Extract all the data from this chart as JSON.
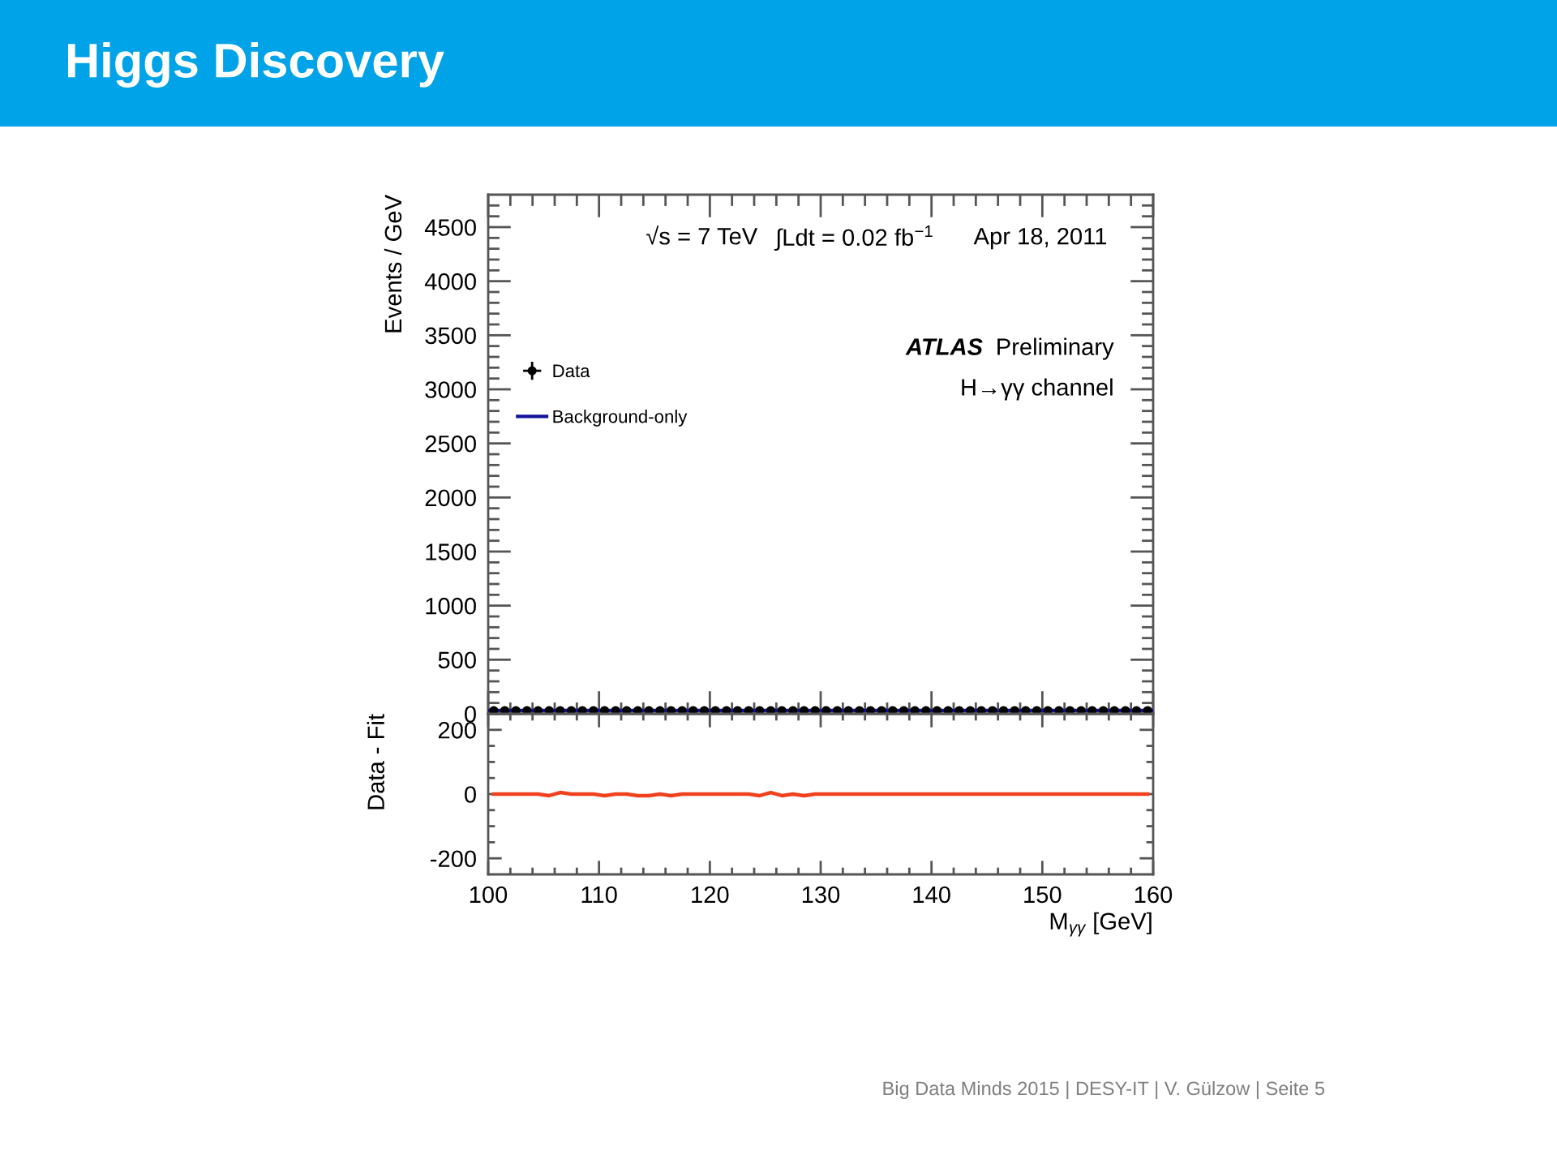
{
  "chart_data": [
    {
      "type": "scatter",
      "title": "Higgs Discovery",
      "ylabel": "Events / GeV",
      "annotations": [
        "√s = 7 TeV",
        "∫Ldt = 0.02 fb$^{−1}$",
        "Apr 18, 2011",
        "ATLAS",
        "Preliminary",
        "H→γγ channel"
      ],
      "series": [
        {
          "name": "Data",
          "type": "scatter",
          "marker": "circle",
          "color": "#000000",
          "x": [
            100.5,
            101.5,
            102.5,
            103.5,
            104.5,
            105.5,
            106.5,
            107.5,
            108.5,
            109.5,
            110.5,
            111.5,
            112.5,
            113.5,
            114.5,
            115.5,
            116.5,
            117.5,
            118.5,
            119.5,
            120.5,
            121.5,
            122.5,
            123.5,
            124.5,
            125.5,
            126.5,
            127.5,
            128.5,
            129.5,
            130.5,
            131.5,
            132.5,
            133.5,
            134.5,
            135.5,
            136.5,
            137.5,
            138.5,
            139.5,
            140.5,
            141.5,
            142.5,
            143.5,
            144.5,
            145.5,
            146.5,
            147.5,
            148.5,
            149.5,
            150.5,
            151.5,
            152.5,
            153.5,
            154.5,
            155.5,
            156.5,
            157.5,
            158.5,
            159.5
          ],
          "values": [
            30,
            30,
            30,
            30,
            30,
            30,
            30,
            30,
            30,
            30,
            30,
            30,
            30,
            30,
            30,
            30,
            30,
            30,
            30,
            30,
            30,
            30,
            30,
            30,
            30,
            30,
            30,
            30,
            30,
            30,
            30,
            30,
            30,
            30,
            30,
            30,
            30,
            30,
            30,
            30,
            30,
            30,
            30,
            30,
            30,
            30,
            30,
            30,
            30,
            30,
            30,
            30,
            30,
            30,
            30,
            30,
            30,
            30,
            30,
            30
          ],
          "errors": [
            20,
            20,
            20,
            20,
            20,
            20,
            20,
            20,
            20,
            20,
            20,
            20,
            20,
            20,
            20,
            20,
            20,
            20,
            20,
            20,
            20,
            20,
            20,
            20,
            20,
            20,
            20,
            20,
            20,
            20,
            20,
            20,
            20,
            20,
            20,
            20,
            20,
            20,
            20,
            20,
            20,
            20,
            20,
            20,
            20,
            20,
            20,
            20,
            20,
            20,
            20,
            20,
            20,
            20,
            20,
            20,
            20,
            20,
            20,
            20
          ],
          "xerrors": [
            0.3,
            0.3,
            0.3,
            0.3,
            0.3,
            0.3,
            0.3,
            0.3,
            0.3,
            0.3,
            0.3,
            0.3,
            0.3,
            0.3,
            0.3,
            0.3,
            0.3,
            0.3,
            0.3,
            0.3,
            0.3,
            0.3,
            0.3,
            0.3,
            0.3,
            0.3,
            0.3,
            0.3,
            0.3,
            0.3,
            0.3,
            0.3,
            0.3,
            0.3,
            0.3,
            0.3,
            0.3,
            0.3,
            0.3,
            0.3,
            0.3,
            0.3,
            0.3,
            0.3,
            0.3,
            0.3,
            0.3,
            0.3,
            0.3,
            0.3,
            0.3,
            0.3,
            0.3,
            0.3,
            0.3,
            0.3,
            0.3,
            0.3,
            0.3,
            0.3
          ]
        },
        {
          "name": "Background-only",
          "type": "line",
          "color": "#14149b",
          "x": [
            100,
            160
          ],
          "values": [
            30,
            30
          ]
        }
      ],
      "xlim": [
        100,
        160
      ],
      "xticks": [
        100,
        {
          "value": 102,
          "label": null
        },
        {
          "value": 104,
          "label": null
        },
        {
          "value": 106,
          "label": null
        },
        {
          "value": 108,
          "label": null
        },
        110,
        {
          "value": 112,
          "label": null
        },
        {
          "value": 114,
          "label": null
        },
        {
          "value": 116,
          "label": null
        },
        {
          "value": 118,
          "label": null
        },
        120,
        {
          "value": 122,
          "label": null
        },
        {
          "value": 124,
          "label": null
        },
        {
          "value": 126,
          "label": null
        },
        {
          "value": 128,
          "label": null
        },
        130,
        {
          "value": 132,
          "label": null
        },
        {
          "value": 134,
          "label": null
        },
        {
          "value": 136,
          "label": null
        },
        {
          "value": 138,
          "label": null
        },
        140,
        {
          "value": 142,
          "label": null
        },
        {
          "value": 144,
          "label": null
        },
        {
          "value": 146,
          "label": null
        },
        {
          "value": 148,
          "label": null
        },
        150,
        {
          "value": 152,
          "label": null
        },
        {
          "value": 154,
          "label": null
        },
        {
          "value": 156,
          "label": null
        },
        {
          "value": 158,
          "label": null
        },
        160
      ],
      "ylim": [
        0,
        4800
      ],
      "yticks": [
        0,
        {
          "value": 100,
          "label": null
        },
        {
          "value": 200,
          "label": null
        },
        {
          "value": 300,
          "label": null
        },
        {
          "value": 400,
          "label": null
        },
        500,
        {
          "value": 600,
          "label": null
        },
        {
          "value": 700,
          "label": null
        },
        {
          "value": 800,
          "label": null
        },
        {
          "value": 900,
          "label": null
        },
        1000,
        {
          "value": 1100,
          "label": null
        },
        {
          "value": 1200,
          "label": null
        },
        {
          "value": 1300,
          "label": null
        },
        {
          "value": 1400,
          "label": null
        },
        1500,
        {
          "value": 1600,
          "label": null
        },
        {
          "value": 1700,
          "label": null
        },
        {
          "value": 1800,
          "label": null
        },
        {
          "value": 1900,
          "label": null
        },
        2000,
        {
          "value": 2100,
          "label": null
        },
        {
          "value": 2200,
          "label": null
        },
        {
          "value": 2300,
          "label": null
        },
        {
          "value": 2400,
          "label": null
        },
        2500,
        {
          "value": 2600,
          "label": null
        },
        {
          "value": 2700,
          "label": null
        },
        {
          "value": 2800,
          "label": null
        },
        {
          "value": 2900,
          "label": null
        },
        3000,
        {
          "value": 3100,
          "label": null
        },
        {
          "value": 3200,
          "label": null
        },
        {
          "value": 3300,
          "label": null
        },
        {
          "value": 3400,
          "label": null
        },
        3500,
        {
          "value": 3600,
          "label": null
        },
        {
          "value": 3700,
          "label": null
        },
        {
          "value": 3800,
          "label": null
        },
        {
          "value": 3900,
          "label": null
        },
        4000,
        {
          "value": 4100,
          "label": null
        },
        {
          "value": 4200,
          "label": null
        },
        {
          "value": 4300,
          "label": null
        },
        {
          "value": 4400,
          "label": null
        },
        4500,
        {
          "value": 4600,
          "label": null
        },
        {
          "value": 4700,
          "label": null
        }
      ],
      "tick_labels": "y",
      "legend": "top left"
    },
    {
      "type": "line",
      "xlabel": "M$_{γγ}$ [GeV]",
      "ylabel": "Data - Fit",
      "annotations": [
        "Big Data Minds 2015 | DESY-IT | V. Gülzow | Seite 5"
      ],
      "x": [
        100.5,
        101.5,
        102.5,
        103.5,
        104.5,
        105.5,
        106.5,
        107.5,
        108.5,
        109.5,
        110.5,
        111.5,
        112.5,
        113.5,
        114.5,
        115.5,
        116.5,
        117.5,
        118.5,
        119.5,
        120.5,
        121.5,
        122.5,
        123.5,
        124.5,
        125.5,
        126.5,
        127.5,
        128.5,
        129.5,
        130.5,
        131.5,
        132.5,
        133.5,
        134.5,
        135.5,
        136.5,
        137.5,
        138.5,
        139.5,
        140.5,
        141.5,
        142.5,
        143.5,
        144.5,
        145.5,
        146.5,
        147.5,
        148.5,
        149.5,
        150.5,
        151.5,
        152.5,
        153.5,
        154.5,
        155.5,
        156.5,
        157.5,
        158.5,
        159.5
      ],
      "series": [
        {
          "color": "#f0401e",
          "values": [
            0,
            0,
            0,
            0,
            0,
            -5,
            5,
            0,
            0,
            0,
            -5,
            0,
            0,
            -5,
            -5,
            0,
            -5,
            0,
            0,
            0,
            0,
            0,
            0,
            0,
            -5,
            5,
            -5,
            0,
            -5,
            0,
            0,
            0,
            0,
            0,
            0,
            0,
            0,
            0,
            0,
            0,
            0,
            0,
            0,
            0,
            0,
            0,
            0,
            0,
            0,
            0,
            0,
            0,
            0,
            0,
            0,
            0,
            0,
            0,
            0,
            0
          ]
        }
      ],
      "xlim": [
        100,
        160
      ],
      "xticks": [
        100,
        {
          "value": 102,
          "label": null
        },
        {
          "value": 104,
          "label": null
        },
        {
          "value": 106,
          "label": null
        },
        {
          "value": 108,
          "label": null
        },
        110,
        {
          "value": 112,
          "label": null
        },
        {
          "value": 114,
          "label": null
        },
        {
          "value": 116,
          "label": null
        },
        {
          "value": 118,
          "label": null
        },
        120,
        {
          "value": 122,
          "label": null
        },
        {
          "value": 124,
          "label": null
        },
        {
          "value": 126,
          "label": null
        },
        {
          "value": 128,
          "label": null
        },
        130,
        {
          "value": 132,
          "label": null
        },
        {
          "value": 134,
          "label": null
        },
        {
          "value": 136,
          "label": null
        },
        {
          "value": 138,
          "label": null
        },
        140,
        {
          "value": 142,
          "label": null
        },
        {
          "value": 144,
          "label": null
        },
        {
          "value": 146,
          "label": null
        },
        {
          "value": 148,
          "label": null
        },
        150,
        {
          "value": 152,
          "label": null
        },
        {
          "value": 154,
          "label": null
        },
        {
          "value": 156,
          "label": null
        },
        {
          "value": 158,
          "label": null
        },
        160
      ],
      "ylim": [
        -250,
        250
      ],
      "yticks": [
        -200,
        {
          "value": -150,
          "label": null
        },
        {
          "value": -100,
          "label": null
        },
        {
          "value": -50,
          "label": null
        },
        0,
        {
          "value": 50,
          "label": null
        },
        {
          "value": 100,
          "label": null
        },
        {
          "value": 150,
          "label": null
        },
        200
      ]
    }
  ]
}
